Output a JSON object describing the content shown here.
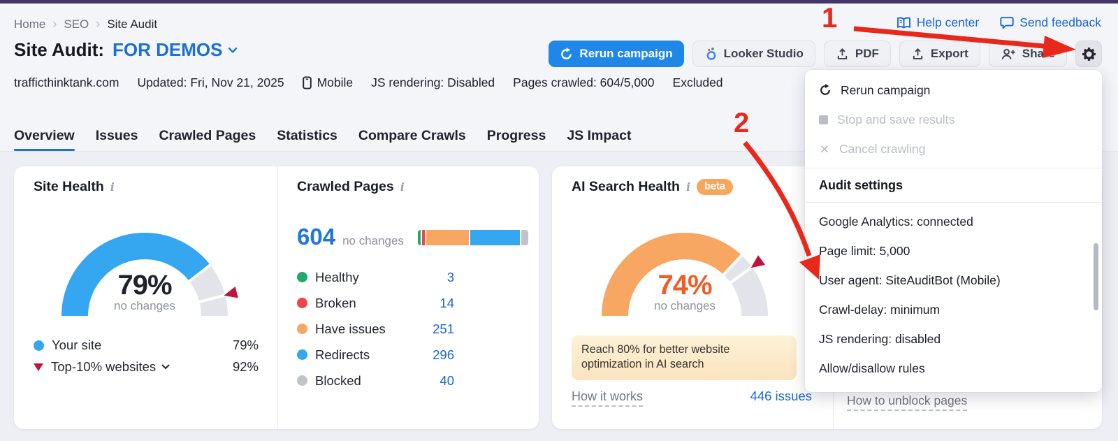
{
  "breadcrumb": {
    "items": [
      {
        "label": "Home"
      },
      {
        "label": "SEO"
      },
      {
        "label": "Site Audit"
      }
    ]
  },
  "header_links": {
    "help": "Help center",
    "feedback": "Send feedback"
  },
  "title": {
    "prefix": "Site Audit:",
    "project": "FOR DEMOS"
  },
  "actions": {
    "rerun": "Rerun campaign",
    "looker": "Looker Studio",
    "pdf": "PDF",
    "export": "Export",
    "share": "Share"
  },
  "meta": {
    "domain": "trafficthinktank.com",
    "updated": "Updated: Fri, Nov 21, 2025",
    "device": "Mobile",
    "js_rendering": "JS rendering: Disabled",
    "pages_crawled": "Pages crawled: 604/5,000",
    "excluded": "Excluded"
  },
  "tabs": {
    "items": [
      {
        "label": "Overview"
      },
      {
        "label": "Issues"
      },
      {
        "label": "Crawled Pages"
      },
      {
        "label": "Statistics"
      },
      {
        "label": "Compare Crawls"
      },
      {
        "label": "Progress"
      },
      {
        "label": "JS Impact"
      }
    ]
  },
  "site_health": {
    "title": "Site Health",
    "value_label": "79%",
    "value_color": "#20232c",
    "change_label": "no changes",
    "gauge": {
      "value": 79,
      "marker": 92,
      "color": "#35a7f0",
      "track": "#e3e4e9",
      "marker_color": "#c11238"
    },
    "legend": [
      {
        "label": "Your site",
        "value": "79%"
      },
      {
        "label": "Top-10% websites",
        "value": "92%"
      }
    ]
  },
  "crawled_pages": {
    "title": "Crawled Pages",
    "total": "604",
    "change_label": "no changes",
    "legend": [
      {
        "label": "Healthy",
        "value": "3",
        "count": 3,
        "color": "#1fa96b"
      },
      {
        "label": "Broken",
        "value": "14",
        "count": 14,
        "color": "#f0444d"
      },
      {
        "label": "Have issues",
        "value": "251",
        "count": 251,
        "color": "#f8a763"
      },
      {
        "label": "Redirects",
        "value": "296",
        "count": 296,
        "color": "#35a7f0"
      },
      {
        "label": "Blocked",
        "value": "40",
        "count": 40,
        "color": "#c0c4ca"
      }
    ]
  },
  "ai_search_health": {
    "title": "AI Search Health",
    "badge": "beta",
    "badge_color": "#f7a65e",
    "value_label": "74%",
    "value_color": "#ee5e27",
    "change_label": "no changes",
    "gauge": {
      "value": 74,
      "marker": 80,
      "color": "#f8a763",
      "track": "#e3e4e9",
      "marker_color": "#c11238"
    },
    "banner": "Reach 80% for better website optimization in AI search",
    "how_link": "How it works",
    "issues_link": "446 issues"
  },
  "blocked_card": {
    "link": "How to unblock pages"
  },
  "menu": {
    "actions": [
      {
        "label": "Rerun campaign"
      },
      {
        "label": "Stop and save results"
      },
      {
        "label": "Cancel crawling"
      }
    ],
    "header": "Audit settings",
    "settings": [
      {
        "label": "Google Analytics: connected"
      },
      {
        "label": "Page limit: 5,000"
      },
      {
        "label": "User agent: SiteAuditBot (Mobile)"
      },
      {
        "label": "Crawl-delay: minimum"
      },
      {
        "label": "JS rendering: disabled"
      },
      {
        "label": "Allow/disallow rules"
      }
    ]
  },
  "annotations": {
    "step1": "1",
    "step2": "2"
  },
  "chart_data": [
    {
      "type": "gauge",
      "title": "Site Health",
      "value": 79,
      "max": 100,
      "benchmark_marker": 92,
      "note": "no changes",
      "legend": [
        {
          "name": "Your site",
          "value": 79
        },
        {
          "name": "Top-10% websites",
          "value": 92
        }
      ]
    },
    {
      "type": "bar",
      "subtype": "stacked-horizontal",
      "title": "Crawled Pages",
      "total": 604,
      "categories": [
        "Healthy",
        "Broken",
        "Have issues",
        "Redirects",
        "Blocked"
      ],
      "values": [
        3,
        14,
        251,
        296,
        40
      ],
      "colors": [
        "#1fa96b",
        "#f0444d",
        "#f8a763",
        "#35a7f0",
        "#c0c4ca"
      ],
      "note": "no changes"
    },
    {
      "type": "gauge",
      "title": "AI Search Health",
      "value": 74,
      "max": 100,
      "benchmark_marker": 80,
      "note": "no changes",
      "annotation": "Reach 80% for better website optimization in AI search",
      "issues": 446
    }
  ]
}
